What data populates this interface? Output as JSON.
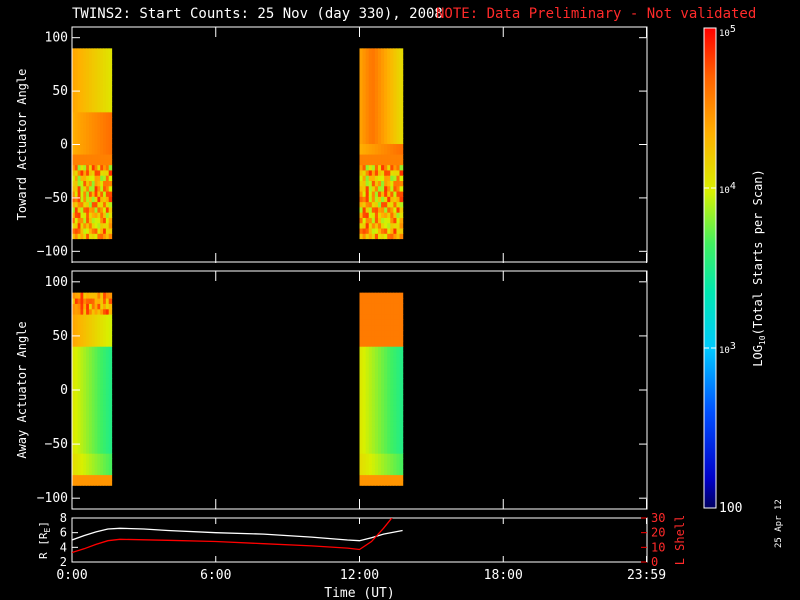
{
  "header": {
    "title": "TWINS2: Start Counts: 25 Nov (day 330), 2008",
    "note": "NOTE: Data Preliminary - Not validated"
  },
  "footer": {
    "date_stamp": "25 Apr 12"
  },
  "colors": {
    "background": "#000000",
    "axis": "#ffffff",
    "note": "#ff2a2a",
    "r_line": "#ffffff",
    "lshell_line": "#ff0000"
  },
  "colorbar": {
    "label": "LOG10(Total Starts per Scan)",
    "label_main": "LOG",
    "label_sub": "10",
    "label_rest": "(Total Starts per Scan)",
    "scale": "log",
    "range": [
      100,
      100000
    ],
    "ticks": [
      {
        "value": 100000,
        "base": "10",
        "exp": "5"
      },
      {
        "value": 10000,
        "base": "10",
        "exp": "4"
      },
      {
        "value": 1000,
        "base": "10",
        "exp": "3"
      },
      {
        "value": 100,
        "text": "100"
      }
    ]
  },
  "chart_data": [
    {
      "type": "heatmap",
      "ylabel": "Toward Actuator Angle",
      "xlim": [
        0,
        24
      ],
      "ylim": [
        -110,
        110
      ],
      "yticks": [
        100,
        50,
        0,
        -50,
        -100
      ],
      "ytick_labels": [
        "100",
        "50",
        "0",
        "−50",
        "−100"
      ],
      "angle_range": [
        -88,
        90
      ],
      "data_intervals_hours": [
        [
          0.0,
          1.65
        ],
        [
          12.0,
          13.8
        ]
      ],
      "description_values": "log10 counts roughly 3.6 to 4.8"
    },
    {
      "type": "heatmap",
      "ylabel": "Away Actuator Angle",
      "xlim": [
        0,
        24
      ],
      "ylim": [
        -110,
        110
      ],
      "yticks": [
        100,
        50,
        0,
        -50,
        -100
      ],
      "ytick_labels": [
        "100",
        "50",
        "0",
        "−50",
        "−100"
      ],
      "angle_range": [
        -88,
        90
      ],
      "data_intervals_hours": [
        [
          0.0,
          1.65
        ],
        [
          12.0,
          13.8
        ]
      ]
    },
    {
      "type": "line",
      "ylabel_left": "R [R",
      "ylabel_left_sub": "E",
      "ylabel_left_end": "]",
      "ylabel_right": "L Shell",
      "xlabel": "Time (UT)",
      "xlim": [
        0,
        24
      ],
      "xticks": [
        0,
        6,
        12,
        18,
        23.98
      ],
      "xtick_labels": [
        "0:00",
        "6:00",
        "12:00",
        "18:00",
        "23:59"
      ],
      "ylim_left": [
        2,
        8
      ],
      "yticks_left": [
        2,
        4,
        6,
        8
      ],
      "ytick_labels_left": [
        "2",
        "4",
        "6",
        "8"
      ],
      "ylim_right": [
        0,
        30
      ],
      "yticks_right": [
        0,
        10,
        20,
        30
      ],
      "ytick_labels_right": [
        "0",
        "10",
        "20",
        "30"
      ],
      "series": [
        {
          "axis": "left",
          "color": "#ffffff",
          "x": [
            0,
            0.5,
            1.0,
            1.5,
            2.0,
            3.0,
            4.0,
            6.0,
            8.0,
            10.0,
            11.5,
            12.0,
            12.5,
            13.0,
            13.8
          ],
          "values": [
            5.0,
            5.6,
            6.1,
            6.5,
            6.6,
            6.5,
            6.3,
            6.0,
            5.8,
            5.4,
            5.0,
            4.9,
            5.3,
            5.8,
            6.3
          ]
        },
        {
          "axis": "right",
          "color": "#ff0000",
          "x": [
            0,
            0.5,
            1.0,
            1.5,
            2.0,
            4.0,
            6.0,
            8.0,
            10.0,
            11.5,
            12.0,
            12.5,
            13.0,
            13.4
          ],
          "values": [
            6.5,
            9.0,
            12.0,
            14.5,
            15.5,
            14.8,
            14.0,
            12.5,
            11.0,
            9.5,
            8.5,
            14.0,
            23.0,
            31.0
          ]
        }
      ]
    }
  ]
}
